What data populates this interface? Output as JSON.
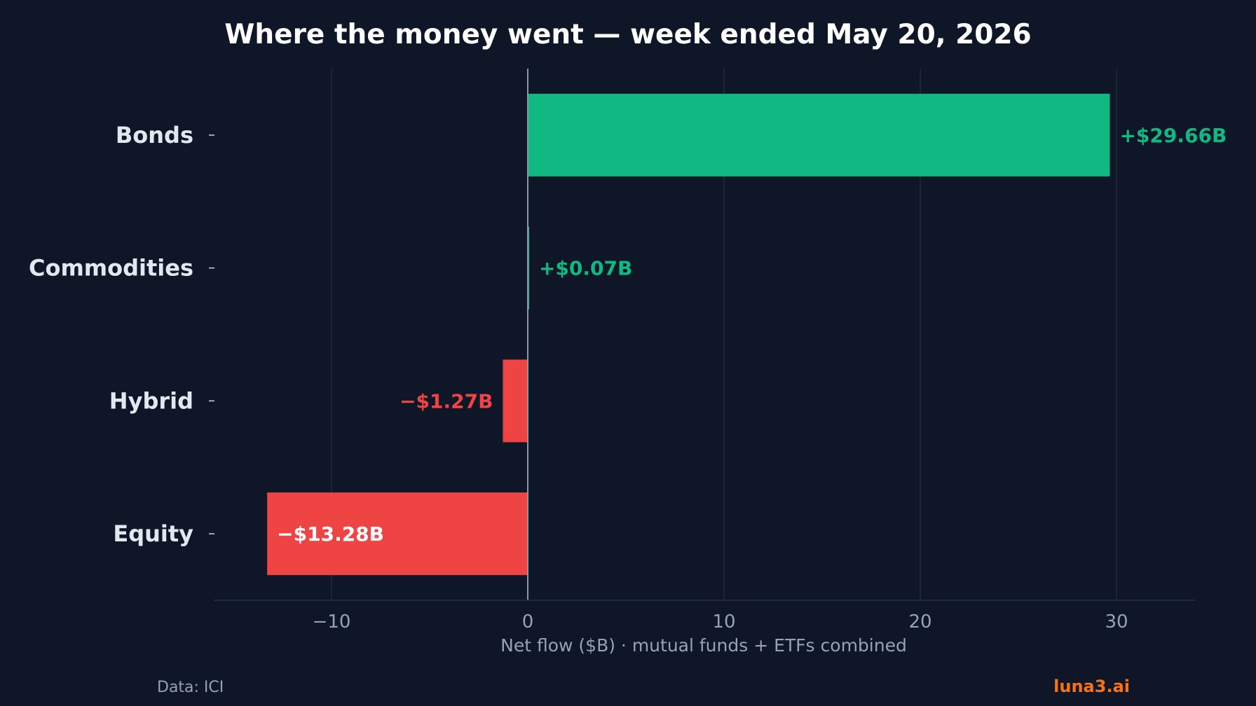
{
  "chart_data": {
    "type": "bar",
    "orientation": "horizontal",
    "title": "Where the money went — week ended May 20, 2026",
    "xlabel": "Net flow ($B) · mutual funds + ETFs combined",
    "ylabel": "",
    "categories": [
      "Bonds",
      "Commodities",
      "Hybrid",
      "Equity"
    ],
    "values": [
      29.66,
      0.07,
      -1.27,
      -13.28
    ],
    "value_labels": [
      "+$29.66B",
      "+$0.07B",
      "−$1.27B",
      "−$13.28B"
    ],
    "xlim": [
      -16,
      34
    ],
    "xticks": [
      -10,
      0,
      10,
      20,
      30
    ],
    "xtick_labels": [
      "−10",
      "0",
      "10",
      "20",
      "30"
    ],
    "grid": "vertical",
    "legend": "none"
  },
  "footer": {
    "source": "Data: ICI",
    "brand": "luna3.ai"
  },
  "colors": {
    "background": "#0e1628",
    "positive": "#10b981",
    "negative": "#ef4444",
    "grid": "#233044",
    "zero_line": "#8a97a8",
    "brand": "#f97316"
  }
}
